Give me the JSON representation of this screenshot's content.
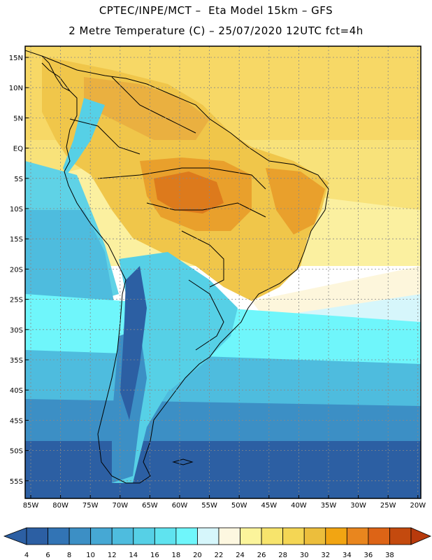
{
  "header": {
    "line1": "CPTEC/INPE/MCT –  Eta Model 15km – GFS",
    "line2": "2 Metre Temperature (C) – 25/07/2020 12UTC fct=4h"
  },
  "map": {
    "lat_labels": [
      "15N",
      "10N",
      "5N",
      "EQ",
      "5S",
      "10S",
      "15S",
      "20S",
      "25S",
      "30S",
      "35S",
      "40S",
      "45S",
      "50S",
      "55S"
    ],
    "lon_labels": [
      "85W",
      "80W",
      "75W",
      "70W",
      "65W",
      "60W",
      "55W",
      "50W",
      "45W",
      "40W",
      "35W",
      "30W",
      "25W",
      "20W"
    ]
  },
  "colorbar": {
    "labels": [
      "4",
      "6",
      "8",
      "10",
      "12",
      "14",
      "16",
      "18",
      "20",
      "22",
      "24",
      "26",
      "28",
      "30",
      "32",
      "34",
      "36",
      "38"
    ],
    "colors": [
      "#2c5fa3",
      "#3274b5",
      "#3c8fc5",
      "#46a8d4",
      "#4ebcde",
      "#56d0e6",
      "#5fe3ef",
      "#6ff6fb",
      "#d6f6fb",
      "#fdf7e0",
      "#fbf49b",
      "#f7e46c",
      "#f4d654",
      "#ecbe3c",
      "#f2a512",
      "#e9861e",
      "#dd6416",
      "#c44a0e"
    ],
    "under_color": "#2c5fa3",
    "over_color": "#b83a0c"
  }
}
